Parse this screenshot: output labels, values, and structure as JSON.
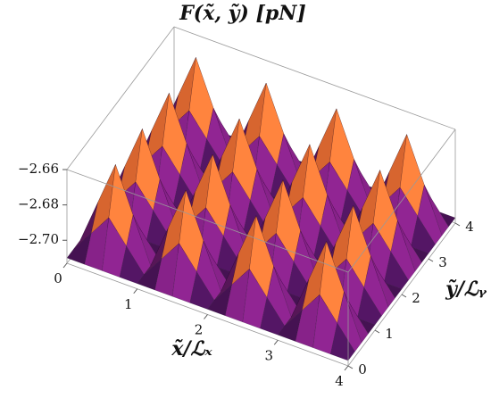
{
  "chart_data": {
    "type": "surface",
    "title": "F(x̃, ỹ) [pN]",
    "x_label": "x̃/ℒₓ",
    "y_label": "ỹ/ℒᵧ",
    "x": [
      0,
      0.25,
      0.5,
      0.75,
      1,
      1.25,
      1.5,
      1.75,
      2,
      2.25,
      2.5,
      2.75,
      3,
      3.25,
      3.5,
      3.75,
      4
    ],
    "y": [
      0,
      0.25,
      0.5,
      0.75,
      1,
      1.25,
      1.5,
      1.75,
      2,
      2.25,
      2.5,
      2.75,
      3,
      3.25,
      3.5,
      3.75,
      4
    ],
    "z": [
      [
        -2.71,
        -2.71,
        -2.71,
        -2.71,
        -2.71,
        -2.71,
        -2.71,
        -2.71,
        -2.71,
        -2.71,
        -2.71,
        -2.71,
        -2.71,
        -2.71,
        -2.71,
        -2.71,
        -2.71
      ],
      [
        -2.71,
        -2.6975,
        -2.685,
        -2.6975,
        -2.71,
        -2.6975,
        -2.685,
        -2.6975,
        -2.71,
        -2.6975,
        -2.685,
        -2.6975,
        -2.71,
        -2.6975,
        -2.685,
        -2.6975,
        -2.71
      ],
      [
        -2.71,
        -2.685,
        -2.66,
        -2.685,
        -2.71,
        -2.685,
        -2.66,
        -2.685,
        -2.71,
        -2.685,
        -2.66,
        -2.685,
        -2.71,
        -2.685,
        -2.66,
        -2.685,
        -2.71
      ],
      [
        -2.71,
        -2.6975,
        -2.685,
        -2.6975,
        -2.71,
        -2.6975,
        -2.685,
        -2.6975,
        -2.71,
        -2.6975,
        -2.685,
        -2.6975,
        -2.71,
        -2.6975,
        -2.685,
        -2.6975,
        -2.71
      ],
      [
        -2.71,
        -2.71,
        -2.71,
        -2.71,
        -2.71,
        -2.71,
        -2.71,
        -2.71,
        -2.71,
        -2.71,
        -2.71,
        -2.71,
        -2.71,
        -2.71,
        -2.71,
        -2.71,
        -2.71
      ],
      [
        -2.71,
        -2.6975,
        -2.685,
        -2.6975,
        -2.71,
        -2.6975,
        -2.685,
        -2.6975,
        -2.71,
        -2.6975,
        -2.685,
        -2.6975,
        -2.71,
        -2.6975,
        -2.685,
        -2.6975,
        -2.71
      ],
      [
        -2.71,
        -2.685,
        -2.66,
        -2.685,
        -2.71,
        -2.685,
        -2.66,
        -2.685,
        -2.71,
        -2.685,
        -2.66,
        -2.685,
        -2.71,
        -2.685,
        -2.66,
        -2.685,
        -2.71
      ],
      [
        -2.71,
        -2.6975,
        -2.685,
        -2.6975,
        -2.71,
        -2.6975,
        -2.685,
        -2.6975,
        -2.71,
        -2.6975,
        -2.685,
        -2.6975,
        -2.71,
        -2.6975,
        -2.685,
        -2.6975,
        -2.71
      ],
      [
        -2.71,
        -2.71,
        -2.71,
        -2.71,
        -2.71,
        -2.71,
        -2.71,
        -2.71,
        -2.71,
        -2.71,
        -2.71,
        -2.71,
        -2.71,
        -2.71,
        -2.71,
        -2.71,
        -2.71
      ],
      [
        -2.71,
        -2.6975,
        -2.685,
        -2.6975,
        -2.71,
        -2.6975,
        -2.685,
        -2.6975,
        -2.71,
        -2.6975,
        -2.685,
        -2.6975,
        -2.71,
        -2.6975,
        -2.685,
        -2.6975,
        -2.71
      ],
      [
        -2.71,
        -2.685,
        -2.66,
        -2.685,
        -2.71,
        -2.685,
        -2.66,
        -2.685,
        -2.71,
        -2.685,
        -2.66,
        -2.685,
        -2.71,
        -2.685,
        -2.66,
        -2.685,
        -2.71
      ],
      [
        -2.71,
        -2.6975,
        -2.685,
        -2.6975,
        -2.71,
        -2.6975,
        -2.685,
        -2.6975,
        -2.71,
        -2.6975,
        -2.685,
        -2.6975,
        -2.71,
        -2.6975,
        -2.685,
        -2.6975,
        -2.71
      ],
      [
        -2.71,
        -2.71,
        -2.71,
        -2.71,
        -2.71,
        -2.71,
        -2.71,
        -2.71,
        -2.71,
        -2.71,
        -2.71,
        -2.71,
        -2.71,
        -2.71,
        -2.71,
        -2.71,
        -2.71
      ],
      [
        -2.71,
        -2.6975,
        -2.685,
        -2.6975,
        -2.71,
        -2.6975,
        -2.685,
        -2.6975,
        -2.71,
        -2.6975,
        -2.685,
        -2.6975,
        -2.71,
        -2.6975,
        -2.685,
        -2.6975,
        -2.71
      ],
      [
        -2.71,
        -2.685,
        -2.66,
        -2.685,
        -2.71,
        -2.685,
        -2.66,
        -2.685,
        -2.71,
        -2.685,
        -2.66,
        -2.685,
        -2.71,
        -2.685,
        -2.66,
        -2.685,
        -2.71
      ],
      [
        -2.71,
        -2.6975,
        -2.685,
        -2.6975,
        -2.71,
        -2.6975,
        -2.685,
        -2.6975,
        -2.71,
        -2.6975,
        -2.685,
        -2.6975,
        -2.71,
        -2.6975,
        -2.685,
        -2.6975,
        -2.71
      ],
      [
        -2.71,
        -2.71,
        -2.71,
        -2.71,
        -2.71,
        -2.71,
        -2.71,
        -2.71,
        -2.71,
        -2.71,
        -2.71,
        -2.71,
        -2.71,
        -2.71,
        -2.71,
        -2.71,
        -2.71
      ]
    ],
    "xlim": [
      0,
      4
    ],
    "ylim": [
      0,
      4
    ],
    "zlim": [
      -2.713,
      -2.66
    ],
    "xticks": [
      0,
      1,
      2,
      3,
      4
    ],
    "yticks": [
      0,
      1,
      2,
      3,
      4
    ],
    "zticks": [
      {
        "value": -2.66,
        "label": "−2.66"
      },
      {
        "value": -2.68,
        "label": "−2.68"
      },
      {
        "value": -2.7,
        "label": "−2.70"
      }
    ],
    "colors": [
      "#1e0838",
      "#7a1f7a",
      "#d8503a",
      "#f59a22",
      "#fbe6a0"
    ]
  }
}
